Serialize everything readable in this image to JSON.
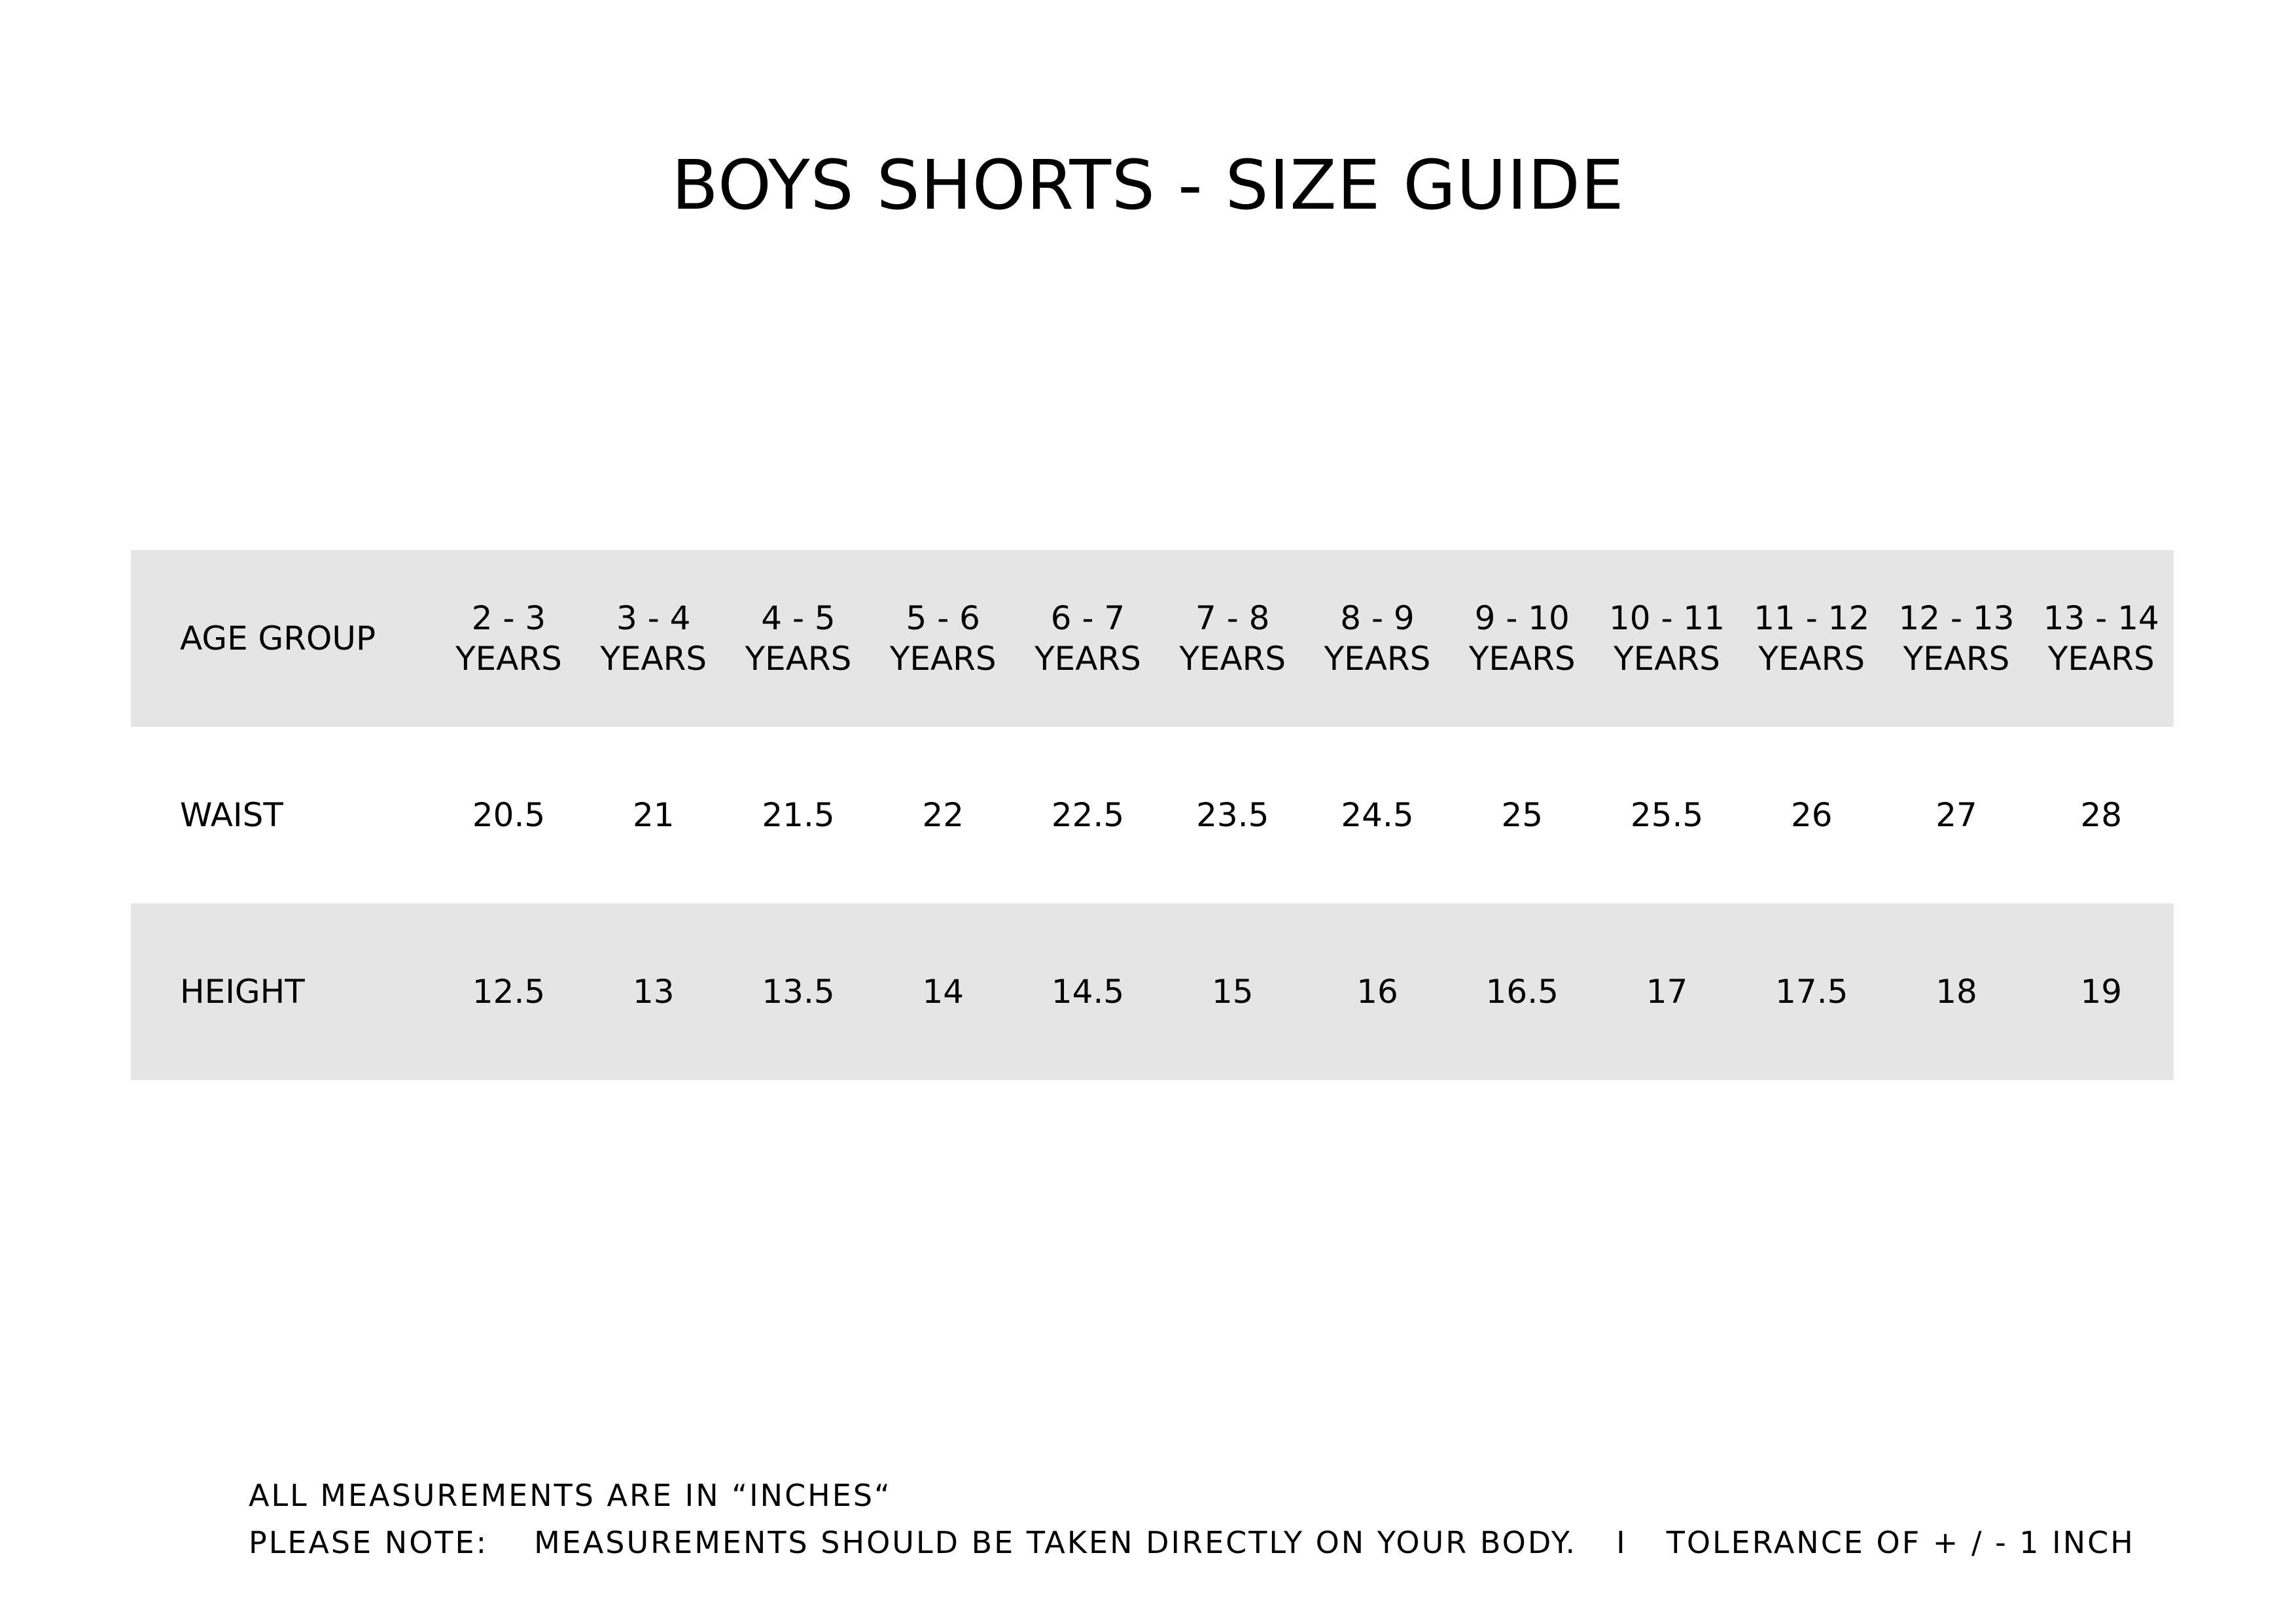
{
  "title": "BOYS SHORTS - SIZE GUIDE",
  "table": {
    "header": {
      "label": "AGE GROUP",
      "columns": [
        {
          "range": "2 - 3",
          "unit": "YEARS"
        },
        {
          "range": "3 - 4",
          "unit": "YEARS"
        },
        {
          "range": "4 - 5",
          "unit": "YEARS"
        },
        {
          "range": "5 - 6",
          "unit": "YEARS"
        },
        {
          "range": "6 - 7",
          "unit": "YEARS"
        },
        {
          "range": "7 - 8",
          "unit": "YEARS"
        },
        {
          "range": "8 - 9",
          "unit": "YEARS"
        },
        {
          "range": "9 - 10",
          "unit": "YEARS"
        },
        {
          "range": "10 - 11",
          "unit": "YEARS"
        },
        {
          "range": "11 - 12",
          "unit": "YEARS"
        },
        {
          "range": "12 - 13",
          "unit": "YEARS"
        },
        {
          "range": "13 - 14",
          "unit": "YEARS"
        }
      ]
    },
    "rows": [
      {
        "label": "WAIST",
        "values": [
          "20.5",
          "21",
          "21.5",
          "22",
          "22.5",
          "23.5",
          "24.5",
          "25",
          "25.5",
          "26",
          "27",
          "28"
        ]
      },
      {
        "label": "HEIGHT",
        "values": [
          "12.5",
          "13",
          "13.5",
          "14",
          "14.5",
          "15",
          "16",
          "16.5",
          "17",
          "17.5",
          "18",
          "19"
        ]
      }
    ],
    "colors": {
      "shaded_row": "#e5e5e5",
      "plain_row": "#ffffff",
      "text": "#000000"
    }
  },
  "notes": {
    "units_line": "ALL MEASUREMENTS ARE IN “INCHES“",
    "please_note_label": "PLEASE NOTE:",
    "please_note_text": "MEASUREMENTS SHOULD BE TAKEN DIRECTLY ON YOUR BODY.",
    "separator": "I",
    "tolerance": "TOLERANCE OF + / - 1 INCH"
  }
}
